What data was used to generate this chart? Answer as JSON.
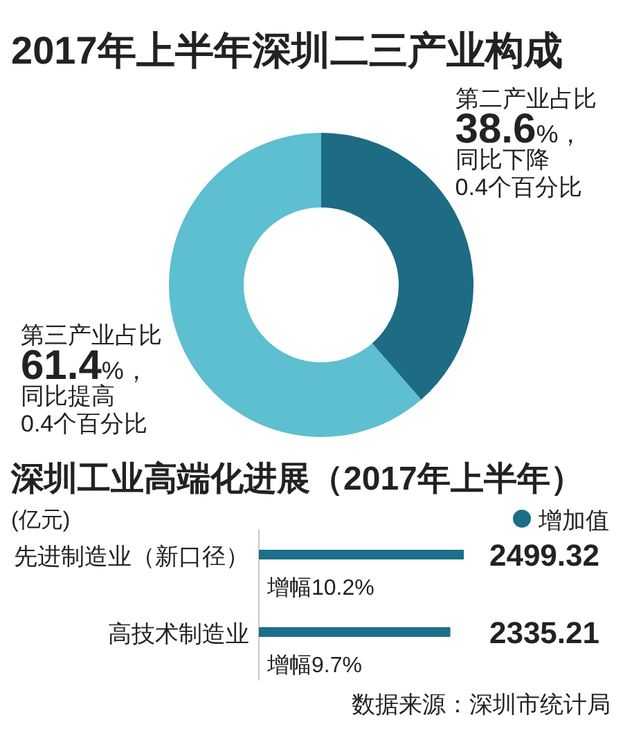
{
  "chart_data": [
    {
      "type": "donut",
      "title": "2017年上半年深圳二三产业构成",
      "categories": [
        "第二产业占比",
        "第三产业占比"
      ],
      "values": [
        38.6,
        61.4
      ],
      "colors": [
        "#1d6c84",
        "#5dbfcf"
      ],
      "value_labels": [
        "38.6%，",
        "61.4%，"
      ],
      "annotations": [
        "同比下降0.4个百分比",
        "同比提高0.4个百分比"
      ]
    },
    {
      "type": "bar",
      "orientation": "horizontal",
      "title": "深圳工业高端化进展（2017年上半年）",
      "xlabel": "(亿元)",
      "categories": [
        "先进制造业（新口径）",
        "高技术制造业"
      ],
      "series": [
        {
          "name": "增加值",
          "color": "#1b6f88",
          "values": [
            2499.32,
            2335.21
          ]
        }
      ],
      "data_labels": true,
      "legend": "top right",
      "annotations": [
        {
          "text": "增幅10.2%",
          "y": "先进制造业（新口径）"
        },
        {
          "text": "增幅9.7%",
          "y": "高技术制造业"
        },
        "数据来源：深圳市统计局"
      ]
    }
  ]
}
